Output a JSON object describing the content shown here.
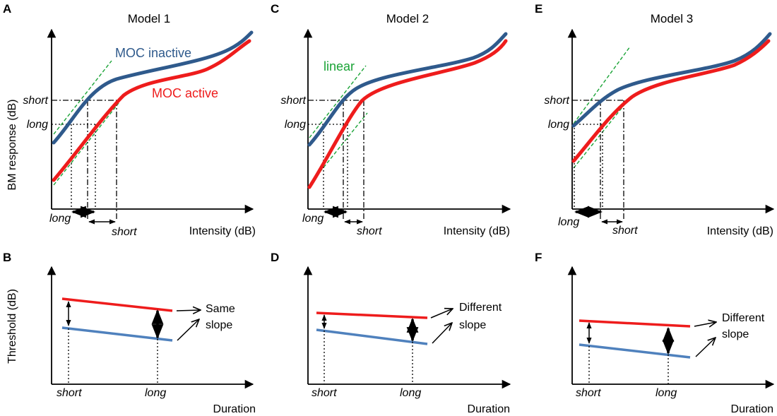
{
  "panels": [
    {
      "letter": "A",
      "title": "Model 1"
    },
    {
      "letter": "C",
      "title": "Model 2"
    },
    {
      "letter": "E",
      "title": "Model 3"
    },
    {
      "letter": "B"
    },
    {
      "letter": "D"
    },
    {
      "letter": "F"
    }
  ],
  "top": {
    "ylabel": "BM response (dB)",
    "xlabel": "Intensity (dB)",
    "short": "short",
    "long": "long",
    "moc_inactive": "MOC inactive",
    "moc_active": "MOC active",
    "linear": "linear"
  },
  "bottom": {
    "ylabel": "Threshold (dB)",
    "xlabel": "Duration",
    "short": "short",
    "long": "long",
    "same": "Same",
    "different": "Different",
    "slope": "slope"
  },
  "colors": {
    "moc_inactive": "#2f5a8c",
    "moc_active": "#ee1c1c",
    "linear": "#1aa336",
    "threshold_low": "#4f81bd",
    "axis": "#000000"
  }
}
